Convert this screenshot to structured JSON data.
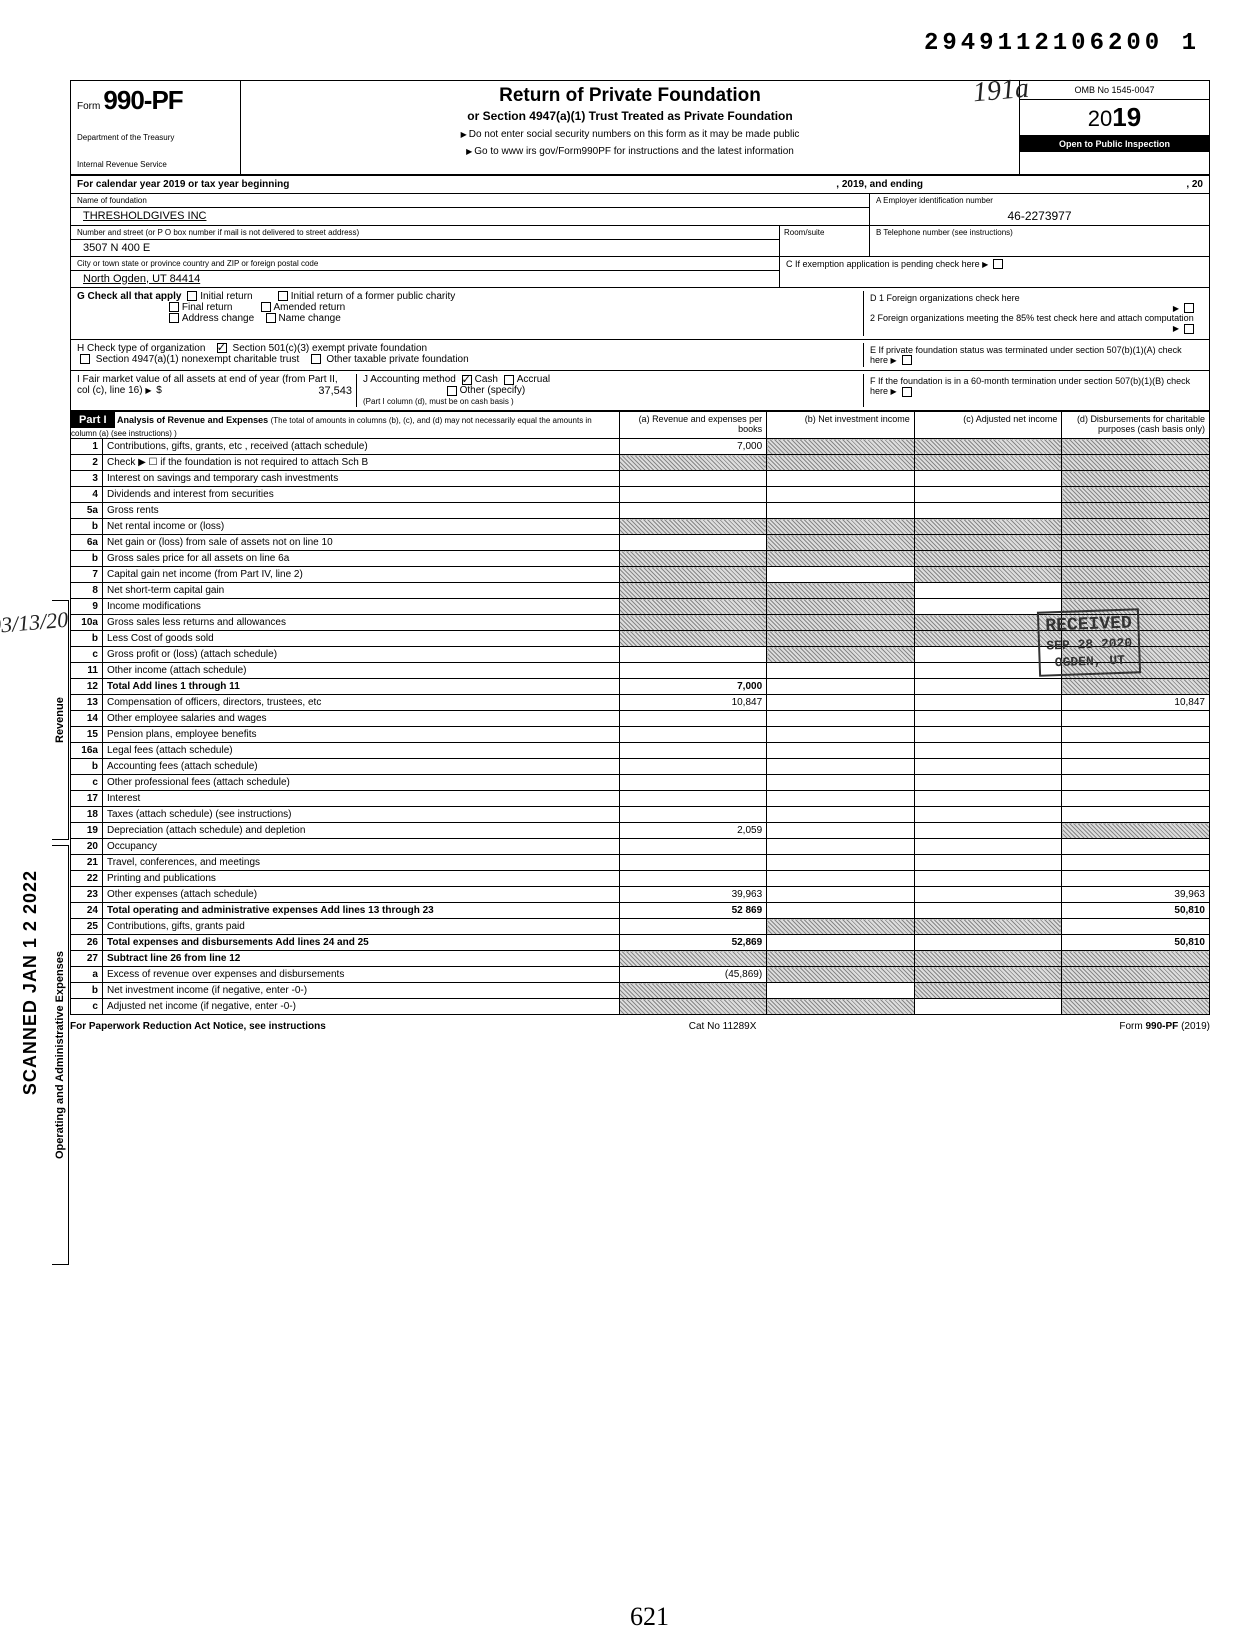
{
  "dln": "2949112106200  1",
  "form": {
    "form_label": "Form",
    "form_number": "990-PF",
    "dept1": "Department of the Treasury",
    "dept2": "Internal Revenue Service",
    "title": "Return of Private Foundation",
    "subtitle": "or Section 4947(a)(1) Trust Treated as Private Foundation",
    "line1": "Do not enter social security numbers on this form as it may be made public",
    "line2": "Go to www irs gov/Form990PF for instructions and the latest information",
    "omb": "OMB No 1545-0047",
    "year_prefix": "20",
    "year_bold": "19",
    "inspect": "Open to Public Inspection",
    "handwritten_initials": "191a"
  },
  "cal_year": {
    "text_a": "For calendar year 2019 or tax year beginning",
    "text_b": ", 2019, and ending",
    "text_c": ", 20"
  },
  "header_rows": {
    "name_label": "Name of foundation",
    "name": "THRESHOLDGIVES INC",
    "ein_label": "A  Employer identification number",
    "ein": "46-2273977",
    "street_label": "Number and street (or P O  box number if mail is not delivered to street address)",
    "street": "3507 N 400 E",
    "room_label": "Room/suite",
    "phone_label": "B  Telephone number (see instructions)",
    "city_label": "City or town  state or province  country  and ZIP or foreign postal code",
    "city": "North Ogden, UT 84414",
    "c_label": "C  If exemption application is pending  check here",
    "g_label": "G   Check all that apply",
    "g_opts": [
      "Initial return",
      "Final return",
      "Address change",
      "Initial return of a former public charity",
      "Amended return",
      "Name change"
    ],
    "d1": "D  1  Foreign organizations  check here",
    "d2": "2  Foreign organizations meeting the 85% test check here and attach computation",
    "h_label": "H   Check type of organization",
    "h_opt1": "Section 501(c)(3) exempt private foundation",
    "h_opt2": "Section 4947(a)(1) nonexempt charitable trust",
    "h_opt3": "Other taxable private foundation",
    "e_label": "E  If private foundation status was terminated under section 507(b)(1)(A)  check here",
    "i_label": "I     Fair market value of all assets at end of year  (from Part II, col  (c), line 16)",
    "i_amount_label": "$",
    "i_amount": "37,543",
    "j_label": "J   Accounting method",
    "j_cash": "Cash",
    "j_accrual": "Accrual",
    "j_other": "Other (specify)",
    "j_note": "(Part I  column (d), must be on cash basis )",
    "f_label": "F  If the foundation is in a 60-month termination under section 507(b)(1)(B)  check here"
  },
  "part1": {
    "label": "Part I",
    "title": "Analysis of Revenue and Expenses",
    "note": "(The total of amounts in columns (b), (c), and (d) may not necessarily equal the amounts in column (a) (see instructions) )",
    "col_a": "(a) Revenue and expenses per books",
    "col_b": "(b) Net investment income",
    "col_c": "(c) Adjusted net income",
    "col_d": "(d) Disbursements for charitable purposes (cash basis only)"
  },
  "revenue_label": "Revenue",
  "expenses_label": "Operating and Administrative Expenses",
  "scanned_stamp": "SCANNED JAN 1 2 2022",
  "received_stamp": {
    "l1": "RECEIVED",
    "l2": "SEP 28 2020",
    "l3": "OGDEN, UT"
  },
  "rows": [
    {
      "n": "1",
      "d": "Contributions, gifts, grants, etc , received (attach schedule)",
      "a": "7,000",
      "b": "s",
      "c": "s",
      "da": "s"
    },
    {
      "n": "2",
      "d": "Check ▶ ☐ if the foundation is not required to attach Sch  B",
      "a": "s",
      "b": "s",
      "c": "s",
      "da": "s"
    },
    {
      "n": "3",
      "d": "Interest on savings and temporary cash investments",
      "a": "",
      "b": "",
      "c": "",
      "da": "s"
    },
    {
      "n": "4",
      "d": "Dividends and interest from securities",
      "a": "",
      "b": "",
      "c": "",
      "da": "s"
    },
    {
      "n": "5a",
      "d": "Gross rents",
      "a": "",
      "b": "",
      "c": "",
      "da": "s"
    },
    {
      "n": "b",
      "d": "Net rental income or (loss)",
      "a": "s",
      "b": "s",
      "c": "s",
      "da": "s"
    },
    {
      "n": "6a",
      "d": "Net gain or (loss) from sale of assets not on line 10",
      "a": "",
      "b": "s",
      "c": "s",
      "da": "s"
    },
    {
      "n": "b",
      "d": "Gross sales price for all assets on line 6a",
      "a": "s",
      "b": "s",
      "c": "s",
      "da": "s"
    },
    {
      "n": "7",
      "d": "Capital gain net income (from Part IV, line 2)",
      "a": "s",
      "b": "",
      "c": "s",
      "da": "s"
    },
    {
      "n": "8",
      "d": "Net short-term capital gain",
      "a": "s",
      "b": "s",
      "c": "",
      "da": "s"
    },
    {
      "n": "9",
      "d": "Income modifications",
      "a": "s",
      "b": "s",
      "c": "",
      "da": "s"
    },
    {
      "n": "10a",
      "d": "Gross sales less returns and allowances",
      "a": "s",
      "b": "s",
      "c": "s",
      "da": "s"
    },
    {
      "n": "b",
      "d": "Less  Cost of goods sold",
      "a": "s",
      "b": "s",
      "c": "s",
      "da": "s"
    },
    {
      "n": "c",
      "d": "Gross profit or (loss) (attach schedule)",
      "a": "",
      "b": "s",
      "c": "",
      "da": "s"
    },
    {
      "n": "11",
      "d": "Other income (attach schedule)",
      "a": "",
      "b": "",
      "c": "",
      "da": "s"
    },
    {
      "n": "12",
      "d": "Total  Add lines 1 through 11",
      "a": "7,000",
      "b": "",
      "c": "",
      "da": "s"
    },
    {
      "n": "13",
      "d": "Compensation of officers, directors, trustees, etc",
      "a": "10,847",
      "b": "",
      "c": "",
      "da": "10,847"
    },
    {
      "n": "14",
      "d": "Other employee salaries and wages",
      "a": "",
      "b": "",
      "c": "",
      "da": ""
    },
    {
      "n": "15",
      "d": "Pension plans, employee benefits",
      "a": "",
      "b": "",
      "c": "",
      "da": ""
    },
    {
      "n": "16a",
      "d": "Legal fees (attach schedule)",
      "a": "",
      "b": "",
      "c": "",
      "da": ""
    },
    {
      "n": "b",
      "d": "Accounting fees (attach schedule)",
      "a": "",
      "b": "",
      "c": "",
      "da": ""
    },
    {
      "n": "c",
      "d": "Other professional fees (attach schedule)",
      "a": "",
      "b": "",
      "c": "",
      "da": ""
    },
    {
      "n": "17",
      "d": "Interest",
      "a": "",
      "b": "",
      "c": "",
      "da": ""
    },
    {
      "n": "18",
      "d": "Taxes (attach schedule) (see instructions)",
      "a": "",
      "b": "",
      "c": "",
      "da": ""
    },
    {
      "n": "19",
      "d": "Depreciation (attach schedule) and depletion",
      "a": "2,059",
      "b": "",
      "c": "",
      "da": "s"
    },
    {
      "n": "20",
      "d": "Occupancy",
      "a": "",
      "b": "",
      "c": "",
      "da": ""
    },
    {
      "n": "21",
      "d": "Travel, conferences, and meetings",
      "a": "",
      "b": "",
      "c": "",
      "da": ""
    },
    {
      "n": "22",
      "d": "Printing and publications",
      "a": "",
      "b": "",
      "c": "",
      "da": ""
    },
    {
      "n": "23",
      "d": "Other expenses (attach schedule)",
      "a": "39,963",
      "b": "",
      "c": "",
      "da": "39,963"
    },
    {
      "n": "24",
      "d": "Total operating and administrative expenses  Add lines 13 through 23",
      "a": "52 869",
      "b": "",
      "c": "",
      "da": "50,810"
    },
    {
      "n": "25",
      "d": "Contributions, gifts, grants paid",
      "a": "",
      "b": "s",
      "c": "s",
      "da": ""
    },
    {
      "n": "26",
      "d": "Total expenses and disbursements  Add lines 24 and 25",
      "a": "52,869",
      "b": "",
      "c": "",
      "da": "50,810"
    },
    {
      "n": "27",
      "d": "Subtract line 26 from line 12",
      "a": "s",
      "b": "s",
      "c": "s",
      "da": "s"
    },
    {
      "n": "a",
      "d": "Excess of revenue over expenses and disbursements",
      "a": "(45,869)",
      "b": "s",
      "c": "s",
      "da": "s"
    },
    {
      "n": "b",
      "d": "Net investment income (if negative, enter -0-)",
      "a": "s",
      "b": "",
      "c": "s",
      "da": "s"
    },
    {
      "n": "c",
      "d": "Adjusted net income (if negative, enter -0-)",
      "a": "s",
      "b": "s",
      "c": "",
      "da": "s"
    }
  ],
  "footer": {
    "left": "For Paperwork Reduction Act Notice, see instructions",
    "center": "Cat  No  11289X",
    "right_a": "Form",
    "right_b": "990-PF",
    "right_c": "(2019)"
  },
  "bottom_hand": "621",
  "side_hand": "03/13/20"
}
